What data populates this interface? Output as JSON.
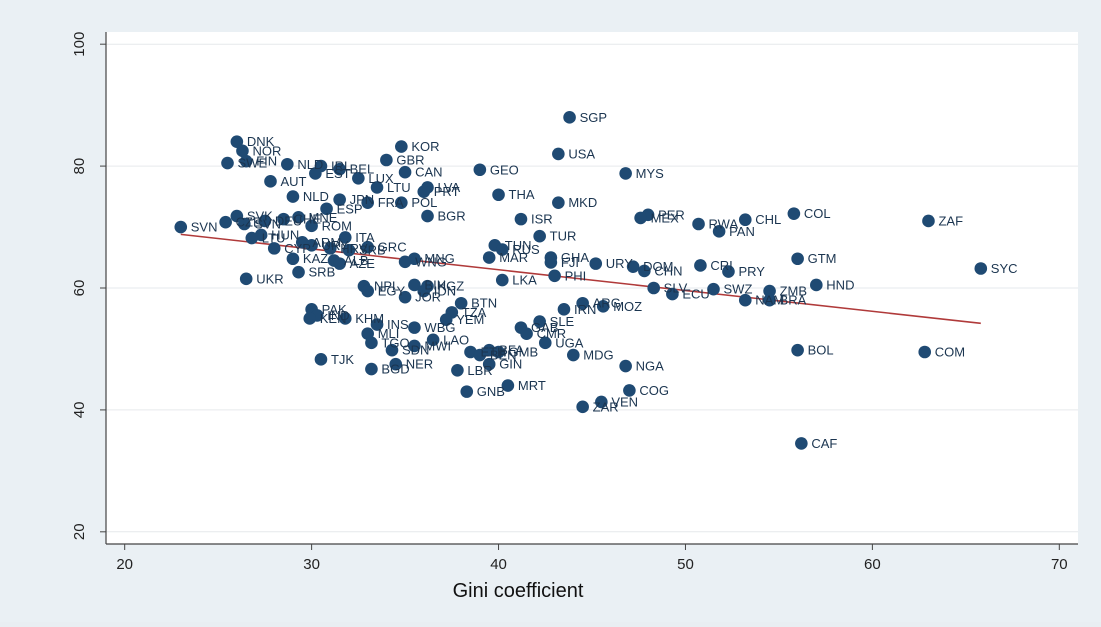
{
  "chart_data": {
    "type": "scatter",
    "title": "",
    "xlabel": "Gini coefficient",
    "ylabel": "",
    "xlim": [
      19,
      71
    ],
    "ylim": [
      18,
      102
    ],
    "xticks": [
      "20",
      "30",
      "40",
      "50",
      "60",
      "70"
    ],
    "yticks": [
      "20",
      "40",
      "60",
      "80",
      "100"
    ],
    "grid": "horizontal",
    "point_color": "#1f4a73",
    "fit_line_color": "#b03a3a",
    "fit_line": {
      "x": [
        23.0,
        65.8
      ],
      "y": [
        68.8,
        54.2
      ]
    },
    "points": [
      {
        "label": "SGP",
        "x": 43.8,
        "y": 88.0
      },
      {
        "label": "DNK",
        "x": 26.0,
        "y": 84.0
      },
      {
        "label": "NOR",
        "x": 26.3,
        "y": 82.5
      },
      {
        "label": "KOR",
        "x": 34.8,
        "y": 83.2
      },
      {
        "label": "GBR",
        "x": 34.0,
        "y": 81.0
      },
      {
        "label": "USA",
        "x": 43.2,
        "y": 82.0
      },
      {
        "label": "SWE",
        "x": 25.5,
        "y": 80.5
      },
      {
        "label": "FIN",
        "x": 26.5,
        "y": 80.8
      },
      {
        "label": "NLD",
        "x": 28.7,
        "y": 80.3
      },
      {
        "label": "IRL",
        "x": 30.5,
        "y": 80.0
      },
      {
        "label": "EST",
        "x": 30.2,
        "y": 78.8
      },
      {
        "label": "BEL",
        "x": 31.5,
        "y": 79.5
      },
      {
        "label": "LUX",
        "x": 32.5,
        "y": 78.0
      },
      {
        "label": "CAN",
        "x": 35.0,
        "y": 79.0
      },
      {
        "label": "GEO",
        "x": 39.0,
        "y": 79.4
      },
      {
        "label": "MYS",
        "x": 46.8,
        "y": 78.8
      },
      {
        "label": "AUT",
        "x": 27.8,
        "y": 77.5
      },
      {
        "label": "LTU",
        "x": 33.5,
        "y": 76.5
      },
      {
        "label": "LVA",
        "x": 36.2,
        "y": 76.5
      },
      {
        "label": "PRT",
        "x": 36.0,
        "y": 75.8
      },
      {
        "label": "THA",
        "x": 40.0,
        "y": 75.3
      },
      {
        "label": "NLD",
        "x": 29.0,
        "y": 75.0
      },
      {
        "label": "JPN",
        "x": 31.5,
        "y": 74.5
      },
      {
        "label": "MKD",
        "x": 43.2,
        "y": 74.0
      },
      {
        "label": "FRA",
        "x": 33.0,
        "y": 74.0
      },
      {
        "label": "POL",
        "x": 34.8,
        "y": 74.0
      },
      {
        "label": "ESP",
        "x": 30.8,
        "y": 73.0
      },
      {
        "label": "PER",
        "x": 48.0,
        "y": 72.0
      },
      {
        "label": "COL",
        "x": 55.8,
        "y": 72.2
      },
      {
        "label": "SVK",
        "x": 26.0,
        "y": 71.8
      },
      {
        "label": "CZE",
        "x": 25.4,
        "y": 70.8
      },
      {
        "label": "SVN",
        "x": 26.4,
        "y": 70.5
      },
      {
        "label": "DEU",
        "x": 27.5,
        "y": 71.0
      },
      {
        "label": "CHE",
        "x": 28.5,
        "y": 71.3
      },
      {
        "label": "MNE",
        "x": 29.3,
        "y": 71.6
      },
      {
        "label": "BGR",
        "x": 36.2,
        "y": 71.8
      },
      {
        "label": "ISR",
        "x": 41.2,
        "y": 71.3
      },
      {
        "label": "MEX",
        "x": 47.6,
        "y": 71.5
      },
      {
        "label": "CHL",
        "x": 53.2,
        "y": 71.2
      },
      {
        "label": "ZAF",
        "x": 63.0,
        "y": 71.0
      },
      {
        "label": "ROM",
        "x": 30.0,
        "y": 70.2
      },
      {
        "label": "RWA",
        "x": 50.7,
        "y": 70.5
      },
      {
        "label": "PAN",
        "x": 51.8,
        "y": 69.3
      },
      {
        "label": "SVN",
        "x": 23.0,
        "y": 70.0
      },
      {
        "label": "HUN",
        "x": 27.3,
        "y": 68.7
      },
      {
        "label": "LTU",
        "x": 26.8,
        "y": 68.2
      },
      {
        "label": "ITA",
        "x": 31.8,
        "y": 68.3
      },
      {
        "label": "TUR",
        "x": 42.2,
        "y": 68.5
      },
      {
        "label": "CYP",
        "x": 28.0,
        "y": 66.5
      },
      {
        "label": "URY",
        "x": 30.0,
        "y": 67.0
      },
      {
        "label": "HRV",
        "x": 31.0,
        "y": 66.5
      },
      {
        "label": "SRB",
        "x": 32.0,
        "y": 66.2
      },
      {
        "label": "GRC",
        "x": 33.0,
        "y": 66.7
      },
      {
        "label": "ARM",
        "x": 29.5,
        "y": 67.5
      },
      {
        "label": "TUN",
        "x": 39.8,
        "y": 67.0
      },
      {
        "label": "RUS",
        "x": 40.2,
        "y": 66.3
      },
      {
        "label": "KAZ",
        "x": 29.0,
        "y": 64.8
      },
      {
        "label": "ALB",
        "x": 31.2,
        "y": 64.5
      },
      {
        "label": "AZE",
        "x": 31.5,
        "y": 64.0
      },
      {
        "label": "MNG",
        "x": 35.5,
        "y": 64.8
      },
      {
        "label": "WNG",
        "x": 35.0,
        "y": 64.3
      },
      {
        "label": "MAR",
        "x": 39.5,
        "y": 65.0
      },
      {
        "label": "FJI",
        "x": 42.8,
        "y": 64.2
      },
      {
        "label": "GHA",
        "x": 42.8,
        "y": 65.0
      },
      {
        "label": "URY",
        "x": 45.2,
        "y": 64.0
      },
      {
        "label": "DOM",
        "x": 47.2,
        "y": 63.5
      },
      {
        "label": "CHN",
        "x": 47.8,
        "y": 62.8
      },
      {
        "label": "CRI",
        "x": 50.8,
        "y": 63.7
      },
      {
        "label": "PRY",
        "x": 52.3,
        "y": 62.7
      },
      {
        "label": "GTM",
        "x": 56.0,
        "y": 64.8
      },
      {
        "label": "SYC",
        "x": 65.8,
        "y": 63.2
      },
      {
        "label": "SRB",
        "x": 29.3,
        "y": 62.6
      },
      {
        "label": "UKR",
        "x": 26.5,
        "y": 61.5
      },
      {
        "label": "LKA",
        "x": 40.2,
        "y": 61.3
      },
      {
        "label": "PHI",
        "x": 43.0,
        "y": 62.0
      },
      {
        "label": "NPL",
        "x": 32.8,
        "y": 60.3
      },
      {
        "label": "EGY",
        "x": 33.0,
        "y": 59.5
      },
      {
        "label": "BIH",
        "x": 35.5,
        "y": 60.5
      },
      {
        "label": "KGZ",
        "x": 36.2,
        "y": 60.3
      },
      {
        "label": "IDN",
        "x": 36.0,
        "y": 59.5
      },
      {
        "label": "JOR",
        "x": 35.0,
        "y": 58.5
      },
      {
        "label": "SLV",
        "x": 48.3,
        "y": 60.0
      },
      {
        "label": "SWZ",
        "x": 51.5,
        "y": 59.8
      },
      {
        "label": "ZMB",
        "x": 54.5,
        "y": 59.5
      },
      {
        "label": "HND",
        "x": 57.0,
        "y": 60.5
      },
      {
        "label": "ECU",
        "x": 49.3,
        "y": 59.0
      },
      {
        "label": "NAM",
        "x": 53.2,
        "y": 58.0
      },
      {
        "label": "BRA",
        "x": 54.5,
        "y": 58.0
      },
      {
        "label": "BTN",
        "x": 38.0,
        "y": 57.5
      },
      {
        "label": "ARG",
        "x": 44.5,
        "y": 57.5
      },
      {
        "label": "MOZ",
        "x": 45.6,
        "y": 57.0
      },
      {
        "label": "IRN",
        "x": 43.5,
        "y": 56.5
      },
      {
        "label": "PAK",
        "x": 30.0,
        "y": 56.5
      },
      {
        "label": "TZA",
        "x": 37.5,
        "y": 56.0
      },
      {
        "label": "IND",
        "x": 30.3,
        "y": 55.5
      },
      {
        "label": "KHM",
        "x": 31.8,
        "y": 55.0
      },
      {
        "label": "YEM",
        "x": 37.2,
        "y": 54.8
      },
      {
        "label": "SLE",
        "x": 42.2,
        "y": 54.5
      },
      {
        "label": "KEN",
        "x": 29.9,
        "y": 55.0
      },
      {
        "label": "INS",
        "x": 33.5,
        "y": 54.0
      },
      {
        "label": "WBG",
        "x": 35.5,
        "y": 53.5
      },
      {
        "label": "MLI",
        "x": 33.0,
        "y": 52.5
      },
      {
        "label": "GAB",
        "x": 41.2,
        "y": 53.5
      },
      {
        "label": "CMR",
        "x": 41.5,
        "y": 52.5
      },
      {
        "label": "TGO",
        "x": 33.2,
        "y": 51.0
      },
      {
        "label": "LAO",
        "x": 36.5,
        "y": 51.5
      },
      {
        "label": "UGA",
        "x": 42.5,
        "y": 51.0
      },
      {
        "label": "SDN",
        "x": 34.3,
        "y": 49.8
      },
      {
        "label": "MWI",
        "x": 35.5,
        "y": 50.5
      },
      {
        "label": "ETH",
        "x": 38.5,
        "y": 49.5
      },
      {
        "label": "BFA",
        "x": 39.5,
        "y": 49.8
      },
      {
        "label": "GMB",
        "x": 40.0,
        "y": 49.5
      },
      {
        "label": "BEN",
        "x": 39.0,
        "y": 49.0
      },
      {
        "label": "MDG",
        "x": 44.0,
        "y": 49.0
      },
      {
        "label": "TJK",
        "x": 30.5,
        "y": 48.3
      },
      {
        "label": "NER",
        "x": 34.5,
        "y": 47.5
      },
      {
        "label": "BGD",
        "x": 33.2,
        "y": 46.7
      },
      {
        "label": "GIN",
        "x": 39.5,
        "y": 47.5
      },
      {
        "label": "LBR",
        "x": 37.8,
        "y": 46.5
      },
      {
        "label": "NGA",
        "x": 46.8,
        "y": 47.2
      },
      {
        "label": "BOL",
        "x": 56.0,
        "y": 49.8
      },
      {
        "label": "COM",
        "x": 62.8,
        "y": 49.5
      },
      {
        "label": "MRT",
        "x": 40.5,
        "y": 44.0
      },
      {
        "label": "GNB",
        "x": 38.3,
        "y": 43.0
      },
      {
        "label": "COG",
        "x": 47.0,
        "y": 43.2
      },
      {
        "label": "VEN",
        "x": 45.5,
        "y": 41.3
      },
      {
        "label": "ZAR",
        "x": 44.5,
        "y": 40.5
      },
      {
        "label": "CAF",
        "x": 56.2,
        "y": 34.5
      }
    ]
  }
}
